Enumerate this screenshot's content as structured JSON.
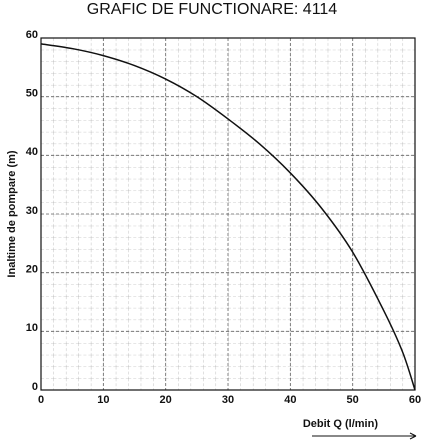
{
  "chart_data": {
    "type": "line",
    "title": "GRAFIC DE FUNCTIONARE: 4114",
    "x_label": "Debit  Q (l/min)",
    "y_label": "Inaltime de pompare (m)",
    "x": [
      0,
      5,
      10,
      15,
      20,
      25,
      30,
      35,
      40,
      45,
      50,
      55,
      58,
      60
    ],
    "series": [
      {
        "name": "4114",
        "color": "#111111",
        "values": [
          59,
          58.2,
          57,
          55.3,
          53,
          50,
          46.2,
          42,
          37,
          31,
          23.5,
          13.5,
          6.5,
          0
        ]
      }
    ],
    "xlim": [
      0,
      60
    ],
    "ylim": [
      0,
      60
    ],
    "xticks": [
      0,
      10,
      20,
      30,
      40,
      50,
      60
    ],
    "yticks": [
      0,
      10,
      20,
      30,
      40,
      50,
      60
    ],
    "grid": true
  }
}
